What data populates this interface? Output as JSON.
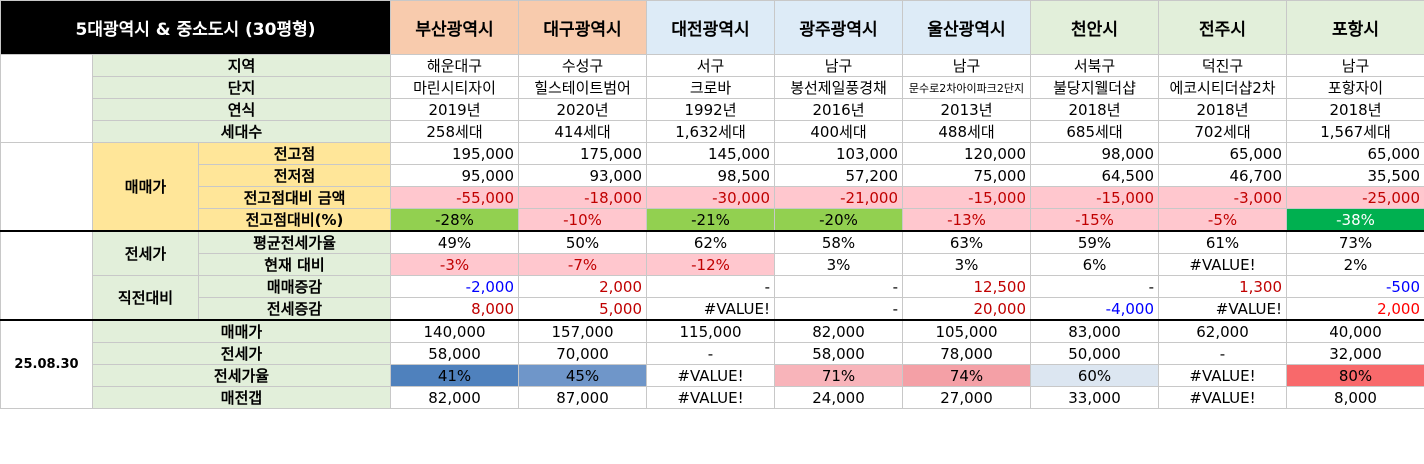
{
  "header": {
    "title": "5대광역시 & 중소도시 (30평형)",
    "cities": [
      "부산광역시",
      "대구광역시",
      "대전광역시",
      "광주광역시",
      "울산광역시",
      "천안시",
      "전주시",
      "포항시"
    ]
  },
  "info": {
    "region": {
      "label": "지역",
      "values": [
        "해운대구",
        "수성구",
        "서구",
        "남구",
        "남구",
        "서북구",
        "덕진구",
        "남구"
      ]
    },
    "complex": {
      "label": "단지",
      "values": [
        "마린시티자이",
        "힐스테이트범어",
        "크로바",
        "봉선제일풍경채",
        "문수로2차아이파크2단지",
        "불당지웰더샵",
        "에코시티더샵2차",
        "포항자이"
      ]
    },
    "year": {
      "label": "연식",
      "values": [
        "2019년",
        "2020년",
        "1992년",
        "2016년",
        "2013년",
        "2018년",
        "2018년",
        "2018년"
      ]
    },
    "households": {
      "label": "세대수",
      "values": [
        "258세대",
        "414세대",
        "1,632세대",
        "400세대",
        "488세대",
        "685세대",
        "702세대",
        "1,567세대"
      ]
    }
  },
  "sale": {
    "group": "매매가",
    "peak": {
      "label": "전고점",
      "values": [
        "195,000",
        "175,000",
        "145,000",
        "103,000",
        "120,000",
        "98,000",
        "65,000",
        "65,000"
      ]
    },
    "low": {
      "label": "전저점",
      "values": [
        "95,000",
        "93,000",
        "98,500",
        "57,200",
        "75,000",
        "64,500",
        "46,700",
        "35,500"
      ]
    },
    "diff": {
      "label": "전고점대비 금액",
      "values": [
        "-55,000",
        "-18,000",
        "-30,000",
        "-21,000",
        "-15,000",
        "-15,000",
        "-3,000",
        "-25,000"
      ]
    },
    "pct": {
      "label": "전고점대비(%)",
      "values": [
        "-28%",
        "-10%",
        "-21%",
        "-20%",
        "-13%",
        "-15%",
        "-5%",
        "-38%"
      ]
    }
  },
  "jeonse": {
    "group": "전세가",
    "avg": {
      "label": "평균전세가율",
      "values": [
        "49%",
        "50%",
        "62%",
        "58%",
        "63%",
        "59%",
        "61%",
        "73%"
      ]
    },
    "current": {
      "label": "현재 대비",
      "values": [
        "-3%",
        "-7%",
        "-12%",
        "3%",
        "3%",
        "6%",
        "#VALUE!",
        "2%"
      ]
    }
  },
  "change": {
    "group": "직전대비",
    "sale_delta": {
      "label": "매매증감",
      "values": [
        "-2,000",
        "2,000",
        "-",
        "-",
        "12,500",
        "-",
        "1,300",
        "-500"
      ]
    },
    "jeonse_delta": {
      "label": "전세증감",
      "values": [
        "8,000",
        "5,000",
        "#VALUE!",
        "-",
        "20,000",
        "-4,000",
        "#VALUE!",
        "2,000"
      ]
    }
  },
  "latest": {
    "date": "25.08.30",
    "sale": {
      "label": "매매가",
      "values": [
        "140,000",
        "157,000",
        "115,000",
        "82,000",
        "105,000",
        "83,000",
        "62,000",
        "40,000"
      ]
    },
    "jeonse": {
      "label": "전세가",
      "values": [
        "58,000",
        "70,000",
        "-",
        "58,000",
        "78,000",
        "50,000",
        "-",
        "32,000"
      ]
    },
    "ratio": {
      "label": "전세가율",
      "values": [
        "41%",
        "45%",
        "#VALUE!",
        "71%",
        "74%",
        "60%",
        "#VALUE!",
        "80%"
      ]
    },
    "gap": {
      "label": "매전갭",
      "values": [
        "82,000",
        "87,000",
        "#VALUE!",
        "24,000",
        "27,000",
        "33,000",
        "#VALUE!",
        "8,000"
      ]
    }
  }
}
